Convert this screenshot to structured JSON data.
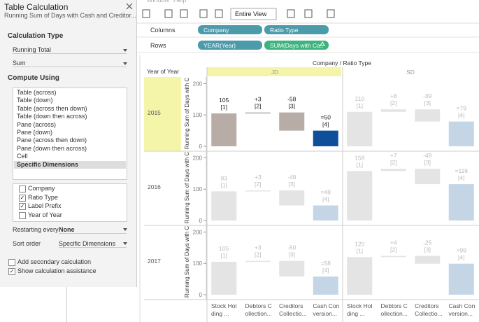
{
  "menu": [
    "Window",
    "Help"
  ],
  "panel": {
    "title": "Table Calculation",
    "subtitle": "Running Sum of Days with Cash and Creditor...",
    "calc_type_label": "Calculation Type",
    "calc_type": "Running Total",
    "aggregation": "Sum",
    "compute_using_label": "Compute Using",
    "compute_options": [
      "Table (across)",
      "Table (down)",
      "Table (across then down)",
      "Table (down then across)",
      "Pane (across)",
      "Pane (down)",
      "Pane (across then down)",
      "Pane (down then across)",
      "Cell",
      "Specific Dimensions"
    ],
    "selected_option": 9,
    "dimensions": [
      {
        "name": "Company",
        "checked": false
      },
      {
        "name": "Ratio Type",
        "checked": true
      },
      {
        "name": "Label Prefix",
        "checked": true
      },
      {
        "name": "Year of Year",
        "checked": false
      }
    ],
    "restarting_label": "Restarting every",
    "restarting": "None",
    "sort_label": "Sort order",
    "sort": "Specific Dimensions",
    "options": [
      {
        "label": "Add secondary calculation",
        "checked": false
      },
      {
        "label": "Show calculation assistance",
        "checked": true
      }
    ]
  },
  "toolbar": {
    "fit": "Entire View"
  },
  "shelves": {
    "columns_label": "Columns",
    "columns": [
      "Company",
      "Ratio Type"
    ],
    "rows_label": "Rows",
    "rows": [
      "YEAR(Year)",
      "SUM(Days with Ca.."
    ]
  },
  "viz": {
    "title": "Company / Ratio Type",
    "row_header": "Year of Year",
    "axis_title": "Running Sum of Days with C",
    "companies": [
      "JD",
      "SD"
    ],
    "ratio_types": [
      "Stock Holding ...",
      "Debtors Collection...",
      "Creditors Collectio...",
      "Cash Conversion..."
    ],
    "years": [
      "2015",
      "2016",
      "2017"
    ],
    "ylim": [
      0,
      210
    ],
    "yticks": [
      0,
      100,
      200
    ],
    "index_labels": [
      "[1]",
      "[2]",
      "[3]",
      "[4]"
    ],
    "highlight": {
      "year": 0,
      "company": 0
    },
    "colors": {
      "bar": "#b7aca6",
      "total": "#0d4f9b",
      "faded_bar": "#e4e4e4",
      "faded_total": "#c4d5e5",
      "header": "#f5f5aa"
    },
    "cells": [
      [
        {
          "values": [
            105,
            3,
            -58,
            50
          ],
          "value_labels": [
            "105",
            "+3",
            "-58",
            "=50"
          ]
        },
        {
          "values": [
            110,
            8,
            -39,
            79
          ],
          "value_labels": [
            "110",
            "+8",
            "-39",
            "=79"
          ]
        }
      ],
      [
        {
          "values": [
            93,
            3,
            -48,
            48
          ],
          "value_labels": [
            "93",
            "+3",
            "-48",
            "=48"
          ]
        },
        {
          "values": [
            158,
            7,
            -49,
            116
          ],
          "value_labels": [
            "158",
            "+7",
            "-49",
            "=116"
          ]
        }
      ],
      [
        {
          "values": [
            105,
            3,
            -50,
            58
          ],
          "value_labels": [
            "105",
            "+3",
            "-50",
            "=58"
          ]
        },
        {
          "values": [
            120,
            4,
            -25,
            99
          ],
          "value_labels": [
            "120",
            "+4",
            "-25",
            "=99"
          ]
        }
      ]
    ]
  }
}
